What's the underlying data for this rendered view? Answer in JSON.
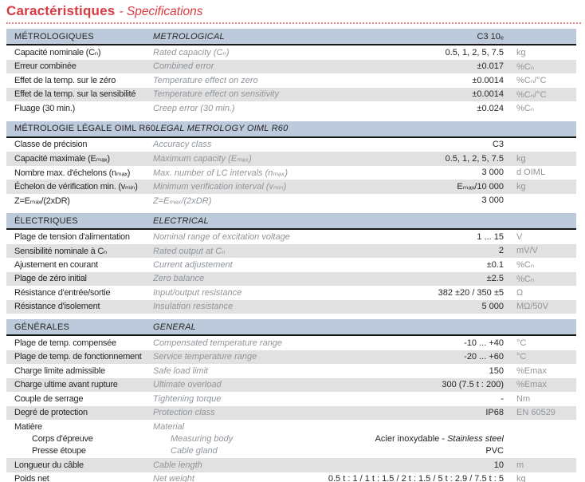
{
  "title": {
    "main": "Caractéristiques",
    "sub": "- Specifications"
  },
  "colors": {
    "accent_red": "#d93a41",
    "underline_red": "#e2858b",
    "header_band": "#bccadb",
    "row_shade": "#e1e1e1",
    "rule_black": "#161616",
    "text_dark": "#262626",
    "text_muted": "#8f959b"
  },
  "table": {
    "sections": [
      {
        "id": "metrological",
        "header": {
          "fr": "MÉTROLOGIQUES",
          "en": "METROLOGICAL",
          "value": "C3 10ₑ"
        },
        "rows": [
          {
            "fr": "Capacité nominale (Cₙ)",
            "en": "Rated capacity (Cₙ)",
            "value": "0.5, 1, 2, 5, 7.5",
            "unit": "kg"
          },
          {
            "fr": "Erreur combinée",
            "en": "Combined error",
            "value": "±0.017",
            "unit": "%Cₙ"
          },
          {
            "fr": "Effet de la temp. sur le zéro",
            "en": "Temperature effect on zero",
            "value": "±0.0014",
            "unit": "%Cₙ/°C"
          },
          {
            "fr": "Effet de la temp. sur la sensibilité",
            "en": "Temperature effect on sensitivity",
            "value": "±0.0014",
            "unit": "%Cₙ/°C"
          },
          {
            "fr": "Fluage (30 min.)",
            "en": "Creep error (30 min.)",
            "value": "±0.024",
            "unit": "%Cₙ"
          }
        ]
      },
      {
        "id": "legal-metrology-oiml-r60",
        "header": {
          "fr": "MÉTROLOGIE LÉGALE OIML R60",
          "en": "LEGAL METROLOGY OIML R60",
          "value": ""
        },
        "rows": [
          {
            "fr": "Classe de précision",
            "en": "Accuracy class",
            "value": "C3",
            "unit": ""
          },
          {
            "fr": "Capacité maximale (Eₘₐₓ)",
            "en": "Maximum capacity (Eₘₐₓ)",
            "value": "0.5, 1, 2, 5, 7.5",
            "unit": "kg"
          },
          {
            "fr": "Nombre max. d'échelons (nₘₐₓ)",
            "en": "Max. number of LC intervals (nₘₐₓ)",
            "value": "3 000",
            "unit": "d OIML"
          },
          {
            "fr": "Échelon de vérification min. (vₘᵢₙ)",
            "en": "Minimum verification interval (vₘᵢₙ)",
            "value": "Eₘₐₓ/10 000",
            "unit": "kg"
          },
          {
            "fr": "Z=Eₘₐₓ/(2xDR)",
            "en": "Z=Eₘₐₓ/(2xDR)",
            "value": "3 000",
            "unit": ""
          }
        ]
      },
      {
        "id": "electrical",
        "header": {
          "fr": "ÉLECTRIQUES",
          "en": "ELECTRICAL",
          "value": ""
        },
        "rows": [
          {
            "fr": "Plage de tension d'alimentation",
            "en": "Nominal range of excitation voltage",
            "value": "1 ... 15",
            "unit": "V"
          },
          {
            "fr": "Sensibilité nominale à Cₙ",
            "en": "Rated output at Cₙ",
            "value": "2",
            "unit": "mV/V"
          },
          {
            "fr": "Ajustement en courant",
            "en": "Current adjustement",
            "value": "±0.1",
            "unit": "%Cₙ"
          },
          {
            "fr": "Plage de zéro initial",
            "en": "Zero balance",
            "value": "±2.5",
            "unit": "%Cₙ"
          },
          {
            "fr": "Résistance d'entrée/sortie",
            "en": "Input/output resistance",
            "value": "382 ±20 / 350 ±5",
            "unit": "Ω"
          },
          {
            "fr": "Résistance d'isolement",
            "en": "Insulation resistance",
            "value": "5 000",
            "unit": "MΩ/50V"
          }
        ]
      },
      {
        "id": "general",
        "header": {
          "fr": "GÉNÉRALES",
          "en": "GENERAL",
          "value": ""
        },
        "rows": [
          {
            "fr": "Plage de temp. compensée",
            "en": "Compensated temperature range",
            "value": "-10 ... +40",
            "unit": "°C"
          },
          {
            "fr": "Plage de temp. de fonctionnement",
            "en": "Service temperature range",
            "value": "-20 ... +60",
            "unit": "°C"
          },
          {
            "fr": "Charge limite admissible",
            "en": "Safe load limit",
            "value": "150",
            "unit": "%Emax"
          },
          {
            "fr": "Charge ultime avant rupture",
            "en": "Ultimate overload",
            "value": "300 (7.5 t : 200)",
            "unit": "%Emax"
          },
          {
            "fr": "Couple de serrage",
            "en": "Tightening torque",
            "value": "-",
            "unit": "Nm"
          },
          {
            "fr": "Degré de protection",
            "en": "Protection class",
            "value": "IP68",
            "unit": "EN 60529"
          },
          {
            "fr": "Matière",
            "en": "Material",
            "value": "",
            "unit": "",
            "sub_rows": [
              {
                "fr": "Corps d'épreuve",
                "en": "Measuring body",
                "value": "Acier inoxydable - ",
                "value_italic": "Stainless steel"
              },
              {
                "fr": "Presse étoupe",
                "en": "Cable gland",
                "value": "PVC"
              }
            ]
          },
          {
            "fr": "Longueur du câble",
            "en": "Cable length",
            "value": "10",
            "unit": "m"
          },
          {
            "fr": "Poids net",
            "en": "Net weight",
            "value": "0.5 t : 1 / 1 t : 1.5 / 2 t : 1.5 / 5 t : 2.9 / 7.5 t : 5",
            "unit": "kg"
          }
        ]
      }
    ]
  }
}
